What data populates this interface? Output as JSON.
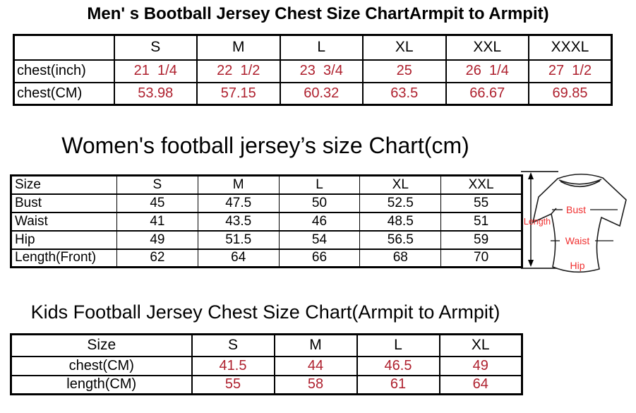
{
  "colors": {
    "table_value_red": "#ae1f2d",
    "diagram_label_red": "#f03030",
    "line_black": "#000000"
  },
  "men_table": {
    "title": "Men' s Bootball Jersey Chest Size ChartArmpit to Armpit)",
    "columns": [
      "",
      "S",
      "M",
      "L",
      "XL",
      "XXL",
      "XXXL"
    ],
    "rows": [
      {
        "label": "chest(inch)",
        "values": [
          "21  1/4",
          "22  1/2",
          "23  3/4",
          "25",
          "26  1/4",
          "27  1/2"
        ]
      },
      {
        "label": "chest(CM)",
        "values": [
          "53.98",
          "57.15",
          "60.32",
          "63.5",
          "66.67",
          "69.85"
        ]
      }
    ]
  },
  "women_table": {
    "title": "Women's football jersey’s size Chart(cm)",
    "columns": [
      "Size",
      "S",
      "M",
      "L",
      "XL",
      "XXL"
    ],
    "rows": [
      {
        "label": "Bust",
        "values": [
          "45",
          "47.5",
          "50",
          "52.5",
          "55"
        ]
      },
      {
        "label": "Waist",
        "values": [
          "41",
          "43.5",
          "46",
          "48.5",
          "51"
        ]
      },
      {
        "label": "Hip",
        "values": [
          "49",
          "51.5",
          "54",
          "56.5",
          "59"
        ]
      },
      {
        "label": "Length(Front)",
        "values": [
          "62",
          "64",
          "66",
          "68",
          "70"
        ]
      }
    ]
  },
  "kids_table": {
    "title": "Kids Football Jersey Chest Size Chart(Armpit to Armpit)",
    "columns": [
      "Size",
      "S",
      "M",
      "L",
      "XL"
    ],
    "rows": [
      {
        "label": "chest(CM)",
        "values": [
          "41.5",
          "44",
          "46.5",
          "49"
        ]
      },
      {
        "label": "length(CM)",
        "values": [
          "55",
          "58",
          "61",
          "64"
        ]
      }
    ]
  },
  "diagram": {
    "length_label": "Length",
    "bust_label": "Bust",
    "waist_label": "Waist",
    "hip_label": "Hip"
  }
}
